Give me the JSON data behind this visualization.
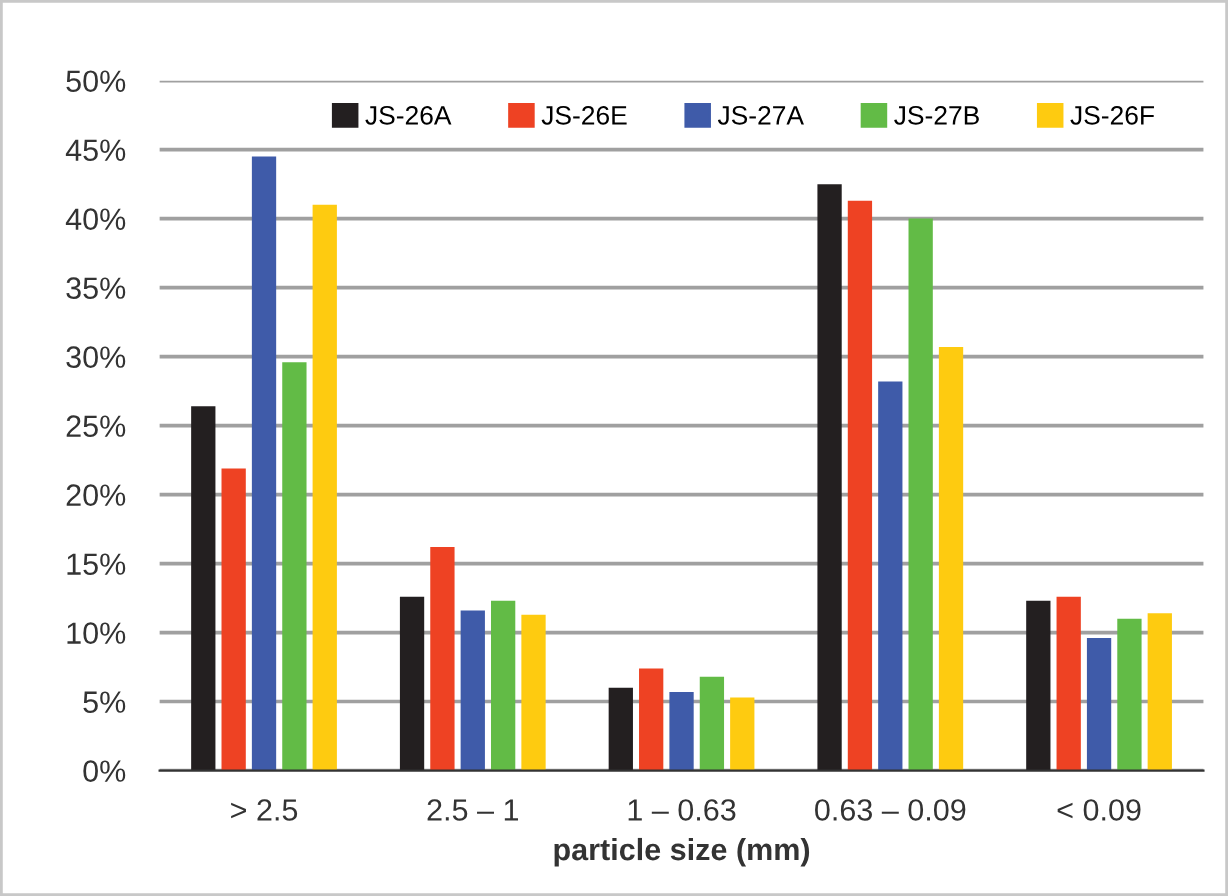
{
  "chart_data": {
    "type": "bar",
    "xlabel": "particle size (mm)",
    "categories": [
      "> 2.5",
      "2.5 – 1",
      "1 – 0.63",
      "0.63 – 0.09",
      "< 0.09"
    ],
    "series": [
      {
        "name": "JS-26A",
        "color": "#231f20",
        "values": [
          26.4,
          12.6,
          6.0,
          42.5,
          12.3
        ]
      },
      {
        "name": "JS-26E",
        "color": "#ee4223",
        "values": [
          21.9,
          16.2,
          7.4,
          41.3,
          12.6
        ]
      },
      {
        "name": "JS-27A",
        "color": "#3f5ba9",
        "values": [
          44.5,
          11.6,
          5.7,
          28.2,
          9.6
        ]
      },
      {
        "name": "JS-27B",
        "color": "#62bb46",
        "values": [
          29.6,
          12.3,
          6.8,
          40.0,
          11.0
        ]
      },
      {
        "name": "JS-26F",
        "color": "#fecb10",
        "values": [
          41.0,
          11.3,
          5.3,
          30.7,
          11.4
        ]
      }
    ],
    "ylim": [
      0,
      50
    ],
    "yticks": [
      {
        "value": 0,
        "label": "0%"
      },
      {
        "value": 5,
        "label": "5%"
      },
      {
        "value": 10,
        "label": "10%"
      },
      {
        "value": 15,
        "label": "15%"
      },
      {
        "value": 20,
        "label": "20%"
      },
      {
        "value": 25,
        "label": "25%"
      },
      {
        "value": 30,
        "label": "30%"
      },
      {
        "value": 35,
        "label": "35%"
      },
      {
        "value": 40,
        "label": "40%"
      },
      {
        "value": 45,
        "label": "45%"
      },
      {
        "value": 50,
        "label": "50%"
      }
    ],
    "grid": "y",
    "legend": "top"
  }
}
